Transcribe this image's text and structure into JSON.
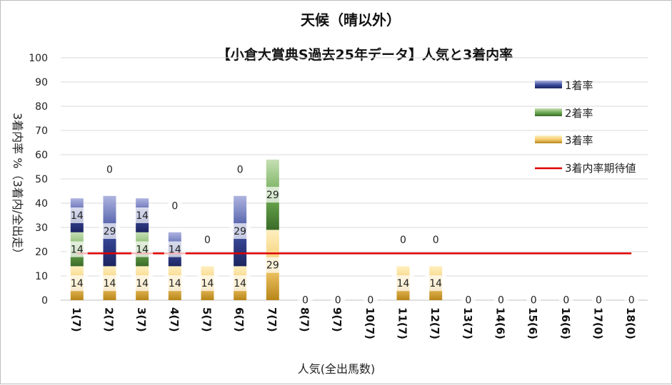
{
  "chart_data": {
    "type": "bar",
    "stacked": true,
    "title": "天候（晴以外）",
    "subtitle": "【小倉大賞典S過去25年データ】人気と3着内率",
    "xlabel": "人気(全出馬数)",
    "ylabel": "3着内率 %（3着内/全出走）",
    "ylim": [
      0,
      100
    ],
    "yticks": [
      0,
      10,
      20,
      30,
      40,
      50,
      60,
      70,
      80,
      90,
      100
    ],
    "grid": true,
    "legend_position": "top-right",
    "categories": [
      "1(7)",
      "2(7)",
      "3(7)",
      "4(7)",
      "5(7)",
      "6(7)",
      "7(7)",
      "8(7)",
      "9(7)",
      "10(7)",
      "11(7)",
      "12(7)",
      "13(7)",
      "14(6)",
      "15(6)",
      "16(6)",
      "17(0)",
      "18(0)"
    ],
    "series": [
      {
        "name": "3着率",
        "values": [
          14,
          14,
          14,
          14,
          14,
          14,
          29,
          0,
          0,
          0,
          14,
          14,
          0,
          0,
          0,
          0,
          0,
          0
        ]
      },
      {
        "name": "2着率",
        "values": [
          14,
          0,
          14,
          0,
          0,
          0,
          29,
          0,
          0,
          0,
          0,
          0,
          0,
          0,
          0,
          0,
          0,
          0
        ]
      },
      {
        "name": "1着率",
        "values": [
          14,
          29,
          14,
          14,
          0,
          29,
          0,
          0,
          0,
          0,
          0,
          0,
          0,
          0,
          0,
          0,
          0,
          0
        ]
      }
    ],
    "reference_line": {
      "name": "3着内率期待値",
      "value": 19.3
    }
  },
  "colors": {
    "first": "#3a4a9c",
    "second": "#5b9240",
    "third": "#d49a26",
    "expect_line": "#e00000",
    "grid": "#d9d9d9"
  }
}
